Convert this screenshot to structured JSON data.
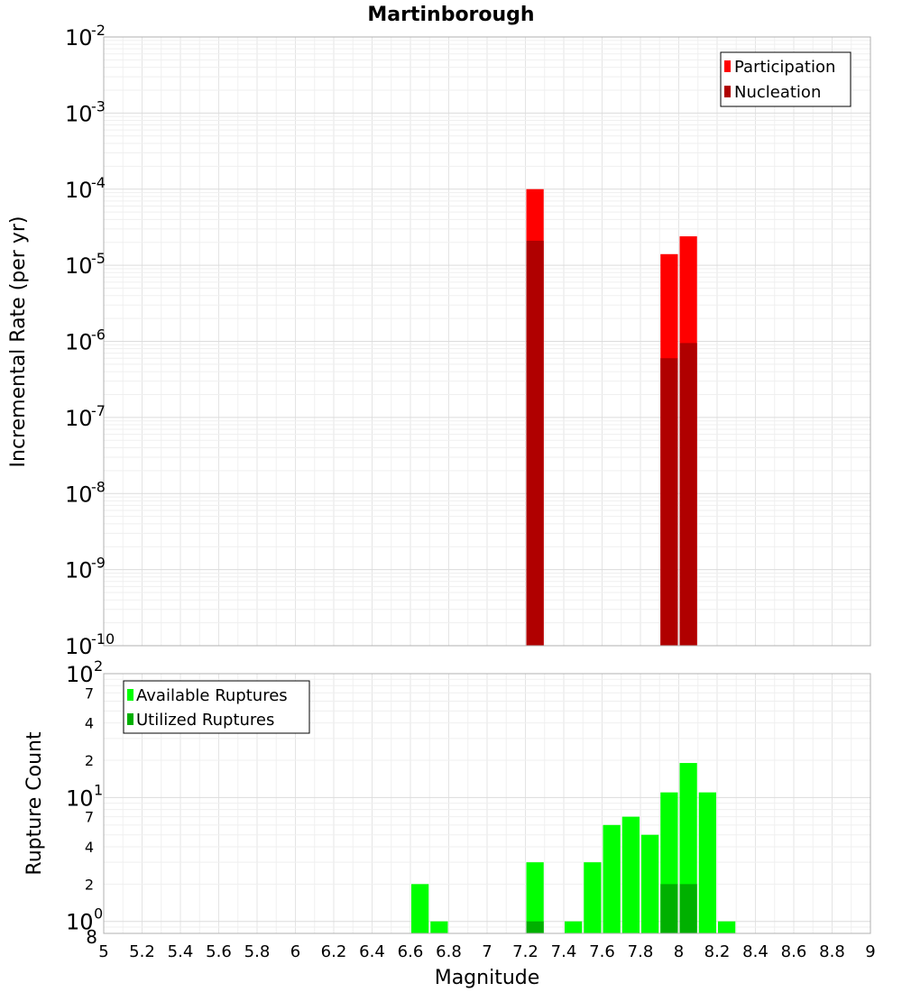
{
  "chart_data": [
    {
      "type": "bar",
      "title": "Martinborough",
      "xlabel": "Magnitude",
      "ylabel": "Incremental Rate (per yr)",
      "yscale": "log",
      "xlim": [
        5,
        9
      ],
      "ylim": [
        1e-10,
        0.01
      ],
      "bar_width": 0.1,
      "xticks": [
        "5",
        "5.2",
        "5.4",
        "5.6",
        "5.8",
        "6",
        "6.2",
        "6.4",
        "6.6",
        "6.8",
        "7",
        "7.2",
        "7.4",
        "7.6",
        "7.8",
        "8",
        "8.2",
        "8.4",
        "8.6",
        "8.8",
        "9"
      ],
      "y_major_exponents": [
        -10,
        -9,
        -8,
        -7,
        -6,
        -5,
        -4,
        -3,
        -2
      ],
      "y_tick_base": "10",
      "legend": {
        "position": "top-right",
        "entries": [
          "Participation",
          "Nucleation"
        ]
      },
      "series": [
        {
          "name": "Participation",
          "color": "#ff0000",
          "points": [
            {
              "x": 7.25,
              "y": 0.0001
            },
            {
              "x": 7.95,
              "y": 1.4e-05
            },
            {
              "x": 8.05,
              "y": 2.4e-05
            }
          ]
        },
        {
          "name": "Nucleation",
          "color": "#b00000",
          "points": [
            {
              "x": 7.25,
              "y": 2.1e-05
            },
            {
              "x": 7.95,
              "y": 6e-07
            },
            {
              "x": 8.05,
              "y": 9.5e-07
            }
          ]
        }
      ]
    },
    {
      "type": "bar",
      "xlabel": "Magnitude",
      "ylabel": "Rupture Count",
      "yscale": "log",
      "xlim": [
        5,
        9
      ],
      "ylim": [
        0.8,
        100
      ],
      "bar_width": 0.1,
      "xticks": [
        "5",
        "5.2",
        "5.4",
        "5.6",
        "5.8",
        "6",
        "6.2",
        "6.4",
        "6.6",
        "6.8",
        "7",
        "7.2",
        "7.4",
        "7.6",
        "7.8",
        "8",
        "8.2",
        "8.4",
        "8.6",
        "8.8",
        "9"
      ],
      "y_ticks": [
        {
          "v": 100,
          "label": "10",
          "exp": "2",
          "major": true
        },
        {
          "v": 70,
          "label": "7",
          "exp": "",
          "major": false
        },
        {
          "v": 40,
          "label": "4",
          "exp": "",
          "major": false
        },
        {
          "v": 20,
          "label": "2",
          "exp": "",
          "major": false
        },
        {
          "v": 10,
          "label": "10",
          "exp": "1",
          "major": true
        },
        {
          "v": 7,
          "label": "7",
          "exp": "",
          "major": false
        },
        {
          "v": 4,
          "label": "4",
          "exp": "",
          "major": false
        },
        {
          "v": 2,
          "label": "2",
          "exp": "",
          "major": false
        },
        {
          "v": 1,
          "label": "10",
          "exp": "0",
          "major": true
        },
        {
          "v": 0.8,
          "label": "8",
          "exp": "",
          "major": false
        }
      ],
      "legend": {
        "position": "top-left",
        "entries": [
          "Available Ruptures",
          "Utilized Ruptures"
        ]
      },
      "series": [
        {
          "name": "Available Ruptures",
          "color": "#00ff00",
          "points": [
            {
              "x": 6.65,
              "y": 2
            },
            {
              "x": 6.75,
              "y": 1
            },
            {
              "x": 7.25,
              "y": 3
            },
            {
              "x": 7.45,
              "y": 1
            },
            {
              "x": 7.55,
              "y": 3
            },
            {
              "x": 7.65,
              "y": 6
            },
            {
              "x": 7.75,
              "y": 7
            },
            {
              "x": 7.85,
              "y": 5
            },
            {
              "x": 7.95,
              "y": 11
            },
            {
              "x": 8.05,
              "y": 19
            },
            {
              "x": 8.15,
              "y": 11
            },
            {
              "x": 8.25,
              "y": 1
            }
          ]
        },
        {
          "name": "Utilized Ruptures",
          "color": "#00b000",
          "points": [
            {
              "x": 7.25,
              "y": 1
            },
            {
              "x": 7.95,
              "y": 2
            },
            {
              "x": 8.05,
              "y": 2
            }
          ]
        }
      ]
    }
  ]
}
